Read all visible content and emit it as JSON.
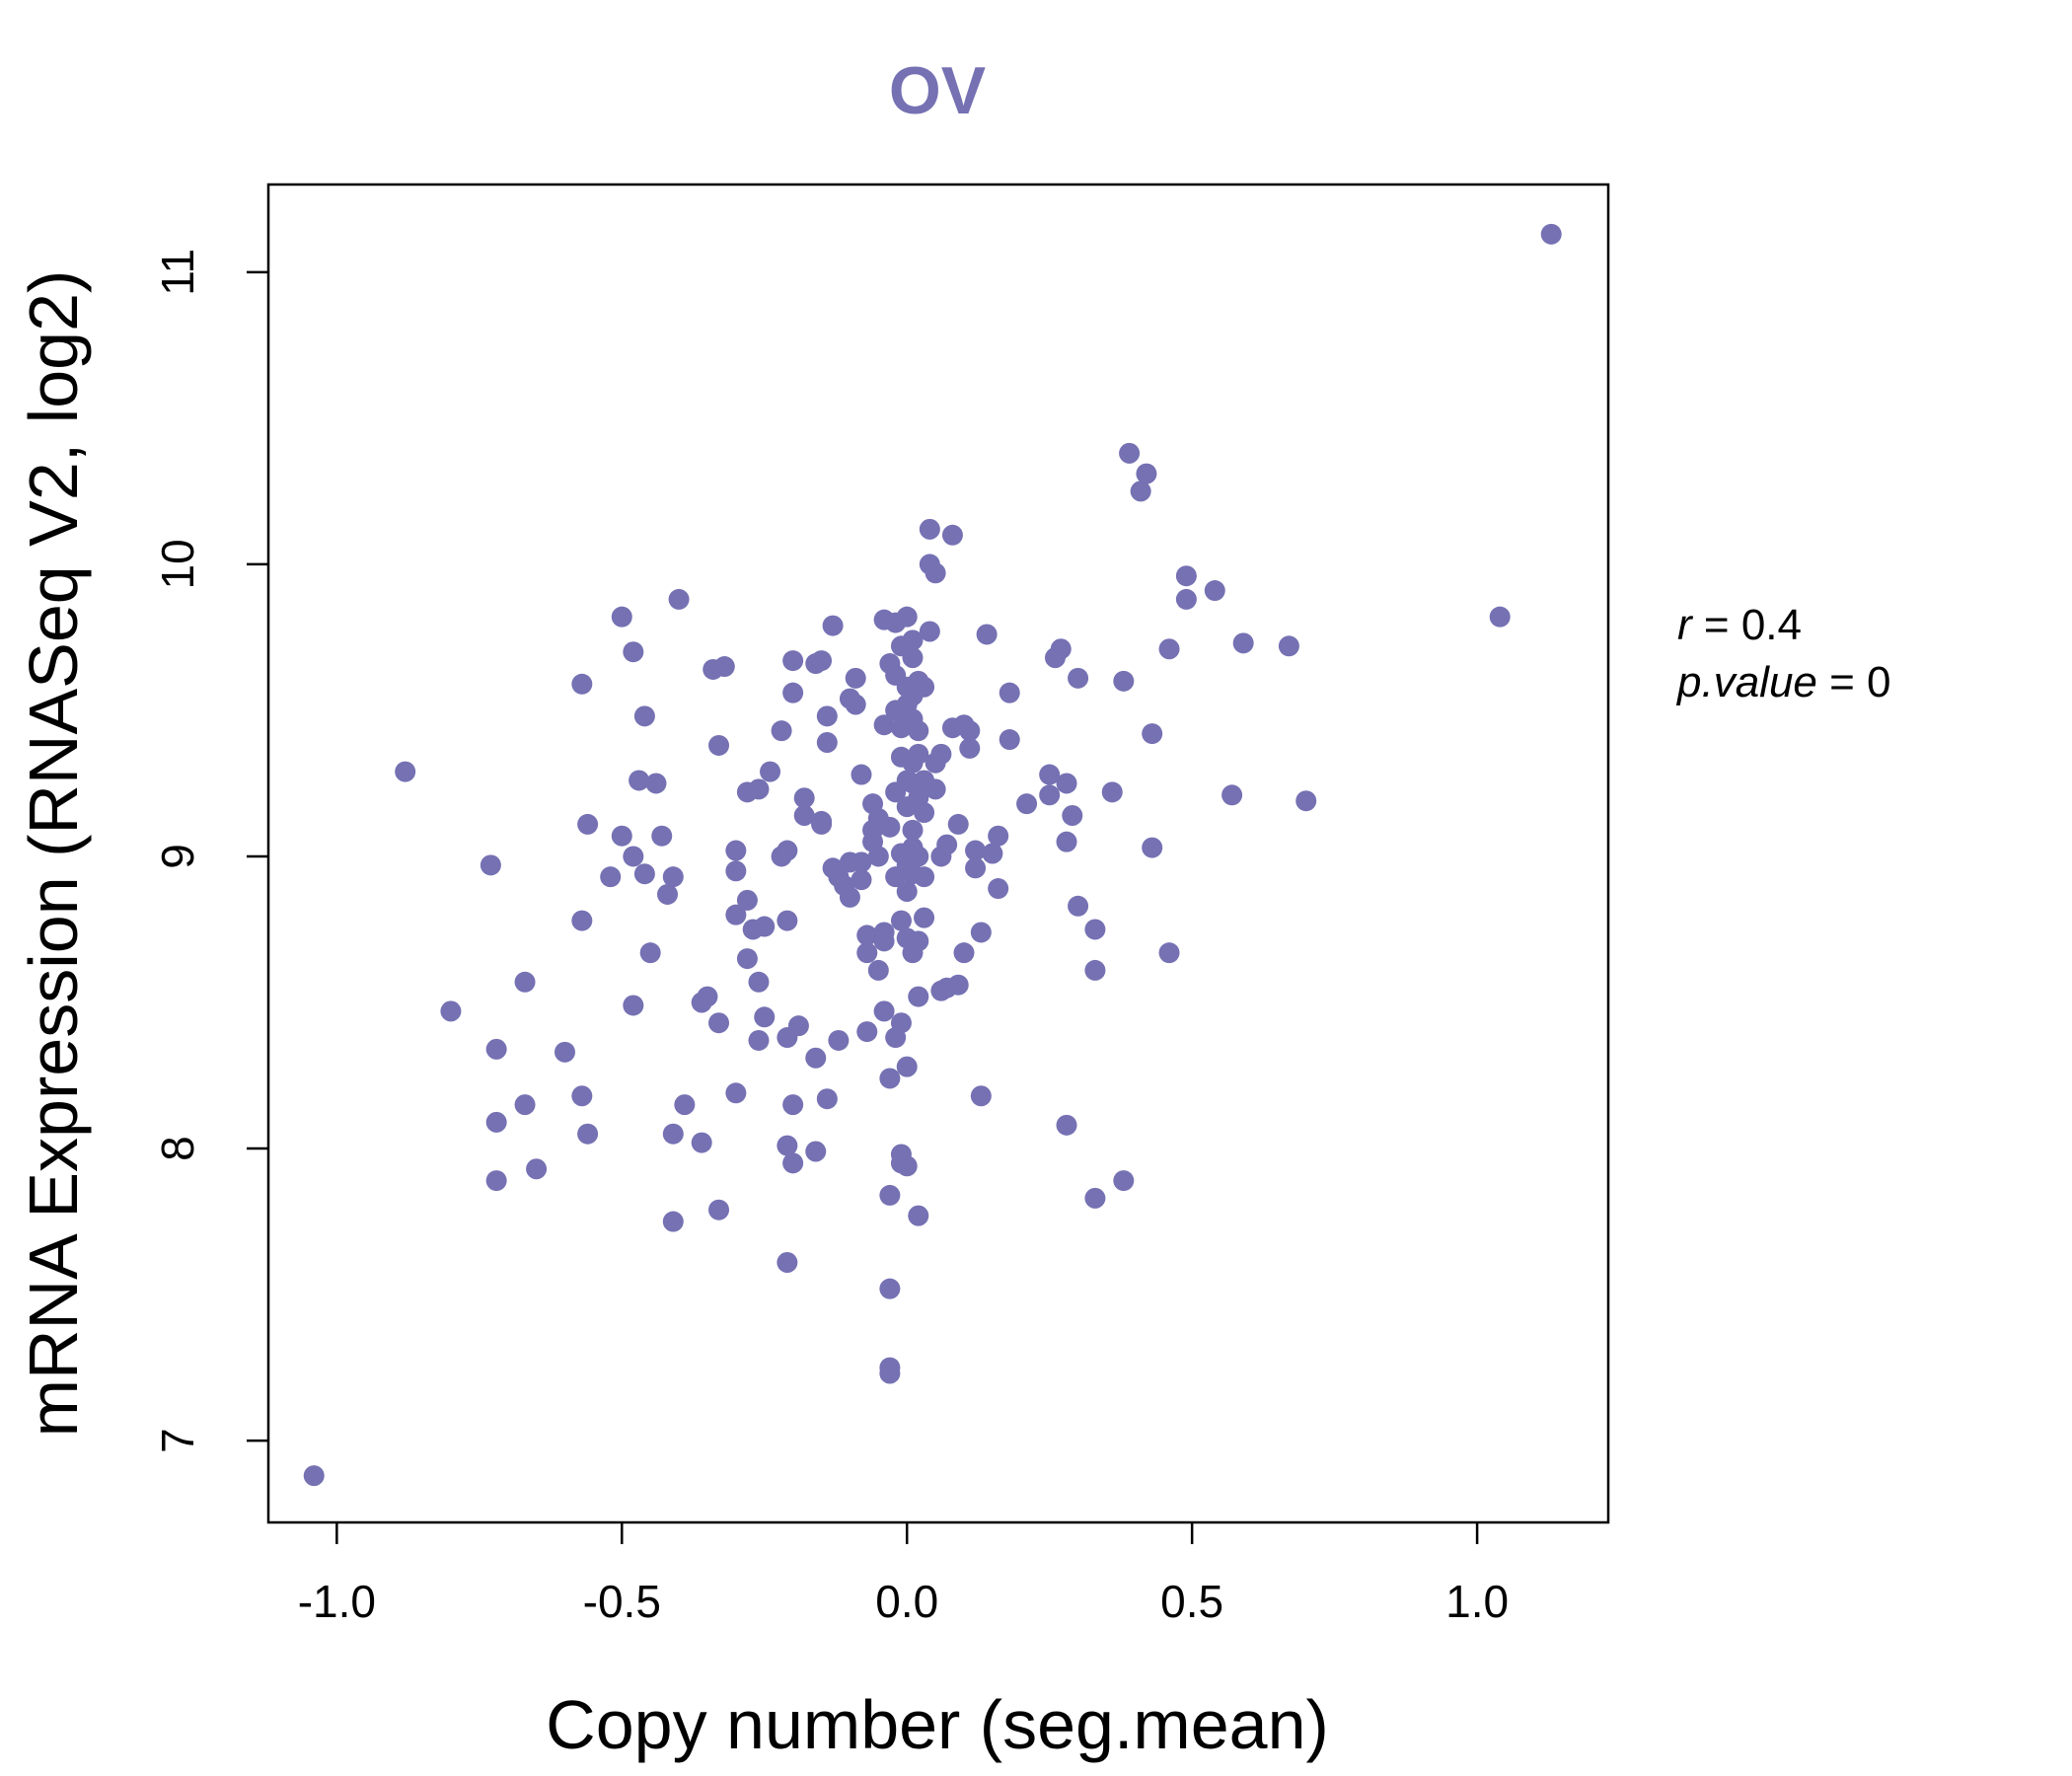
{
  "colors": {
    "accent": "#7571B3",
    "axis": "#000000",
    "background": "#FFFFFF"
  },
  "chart_data": {
    "type": "scatter",
    "title": "OV",
    "xlabel": "Copy number (seg.mean)",
    "ylabel": "mRNA Expression (RNASeq V2, log2)",
    "xlim": [
      -1.12,
      1.23
    ],
    "ylim": [
      6.72,
      11.3
    ],
    "x_ticks": [
      -1.0,
      -0.5,
      0.0,
      0.5,
      1.0
    ],
    "x_tick_labels": [
      "-1.0",
      "-0.5",
      "0.0",
      "0.5",
      "1.0"
    ],
    "y_ticks": [
      7,
      8,
      9,
      10,
      11
    ],
    "y_tick_labels": [
      "7",
      "8",
      "9",
      "10",
      "11"
    ],
    "annotation": {
      "r_label": "r",
      "r_value": "0.4",
      "p_label": "p.value",
      "p_value": "0"
    },
    "points": [
      [
        -1.04,
        6.88
      ],
      [
        -0.88,
        9.29
      ],
      [
        -0.8,
        8.47
      ],
      [
        -0.73,
        8.97
      ],
      [
        -0.72,
        8.34
      ],
      [
        -0.72,
        8.09
      ],
      [
        -0.72,
        7.89
      ],
      [
        -0.67,
        8.57
      ],
      [
        -0.67,
        8.15
      ],
      [
        -0.65,
        7.93
      ],
      [
        -0.6,
        8.33
      ],
      [
        -0.57,
        9.59
      ],
      [
        -0.57,
        8.78
      ],
      [
        -0.57,
        8.18
      ],
      [
        -0.56,
        9.11
      ],
      [
        -0.56,
        8.05
      ],
      [
        -0.52,
        8.93
      ],
      [
        -0.5,
        9.82
      ],
      [
        -0.5,
        9.07
      ],
      [
        -0.48,
        9.7
      ],
      [
        -0.48,
        8.49
      ],
      [
        -0.48,
        9.0
      ],
      [
        -0.47,
        9.26
      ],
      [
        -0.46,
        9.48
      ],
      [
        -0.46,
        8.94
      ],
      [
        -0.45,
        8.67
      ],
      [
        -0.44,
        9.25
      ],
      [
        -0.43,
        9.07
      ],
      [
        -0.42,
        8.87
      ],
      [
        -0.41,
        8.93
      ],
      [
        -0.41,
        8.05
      ],
      [
        -0.41,
        7.75
      ],
      [
        -0.4,
        9.88
      ],
      [
        -0.39,
        8.15
      ],
      [
        -0.36,
        8.5
      ],
      [
        -0.36,
        8.02
      ],
      [
        -0.35,
        8.52
      ],
      [
        -0.34,
        9.64
      ],
      [
        -0.33,
        9.38
      ],
      [
        -0.33,
        8.43
      ],
      [
        -0.33,
        7.79
      ],
      [
        -0.32,
        9.65
      ],
      [
        -0.3,
        9.02
      ],
      [
        -0.3,
        8.95
      ],
      [
        -0.3,
        8.8
      ],
      [
        -0.3,
        8.19
      ],
      [
        -0.28,
        9.22
      ],
      [
        -0.28,
        8.85
      ],
      [
        -0.28,
        8.65
      ],
      [
        -0.27,
        8.75
      ],
      [
        -0.26,
        9.23
      ],
      [
        -0.26,
        8.57
      ],
      [
        -0.26,
        8.37
      ],
      [
        -0.25,
        8.76
      ],
      [
        -0.25,
        8.45
      ],
      [
        -0.24,
        9.29
      ],
      [
        -0.22,
        9.43
      ],
      [
        -0.22,
        9.0
      ],
      [
        -0.21,
        9.02
      ],
      [
        -0.21,
        8.78
      ],
      [
        -0.21,
        8.38
      ],
      [
        -0.21,
        8.01
      ],
      [
        -0.21,
        7.61
      ],
      [
        -0.2,
        9.67
      ],
      [
        -0.2,
        9.56
      ],
      [
        -0.2,
        8.15
      ],
      [
        -0.2,
        7.95
      ],
      [
        -0.19,
        8.42
      ],
      [
        -0.18,
        9.2
      ],
      [
        -0.18,
        9.14
      ],
      [
        -0.16,
        9.66
      ],
      [
        -0.16,
        8.31
      ],
      [
        -0.16,
        7.99
      ],
      [
        -0.15,
        9.67
      ],
      [
        -0.15,
        9.12
      ],
      [
        -0.15,
        9.11
      ],
      [
        -0.14,
        9.48
      ],
      [
        -0.14,
        9.39
      ],
      [
        -0.14,
        8.17
      ],
      [
        -0.13,
        9.79
      ],
      [
        -0.13,
        8.96
      ],
      [
        -0.12,
        8.93
      ],
      [
        -0.12,
        8.37
      ],
      [
        -0.11,
        8.9
      ],
      [
        -0.1,
        9.54
      ],
      [
        -0.1,
        8.98
      ],
      [
        -0.1,
        8.86
      ],
      [
        -0.09,
        9.52
      ],
      [
        -0.09,
        9.61
      ],
      [
        -0.08,
        9.28
      ],
      [
        -0.08,
        8.98
      ],
      [
        -0.08,
        8.92
      ],
      [
        -0.07,
        8.73
      ],
      [
        -0.07,
        8.67
      ],
      [
        -0.07,
        8.4
      ],
      [
        -0.06,
        9.18
      ],
      [
        -0.06,
        9.09
      ],
      [
        -0.06,
        9.05
      ],
      [
        -0.05,
        9.13
      ],
      [
        -0.05,
        9.0
      ],
      [
        -0.05,
        8.61
      ],
      [
        -0.04,
        9.81
      ],
      [
        -0.04,
        9.45
      ],
      [
        -0.04,
        8.74
      ],
      [
        -0.04,
        8.71
      ],
      [
        -0.04,
        8.47
      ],
      [
        -0.03,
        9.66
      ],
      [
        -0.03,
        9.1
      ],
      [
        -0.03,
        8.24
      ],
      [
        -0.03,
        7.84
      ],
      [
        -0.03,
        7.52
      ],
      [
        -0.03,
        7.25
      ],
      [
        -0.03,
        7.23
      ],
      [
        -0.02,
        9.8
      ],
      [
        -0.02,
        9.62
      ],
      [
        -0.02,
        9.5
      ],
      [
        -0.02,
        9.22
      ],
      [
        -0.02,
        8.93
      ],
      [
        -0.02,
        8.38
      ],
      [
        -0.01,
        9.72
      ],
      [
        -0.01,
        9.44
      ],
      [
        -0.01,
        9.34
      ],
      [
        -0.01,
        9.01
      ],
      [
        -0.01,
        8.78
      ],
      [
        -0.01,
        8.43
      ],
      [
        -0.01,
        7.98
      ],
      [
        -0.01,
        7.95
      ],
      [
        0.0,
        9.82
      ],
      [
        0.0,
        9.58
      ],
      [
        0.0,
        9.52
      ],
      [
        0.0,
        9.26
      ],
      [
        0.0,
        9.17
      ],
      [
        0.0,
        8.97
      ],
      [
        0.0,
        8.88
      ],
      [
        0.0,
        8.72
      ],
      [
        0.0,
        8.28
      ],
      [
        0.0,
        7.94
      ],
      [
        0.01,
        9.74
      ],
      [
        0.01,
        9.68
      ],
      [
        0.01,
        9.55
      ],
      [
        0.01,
        9.47
      ],
      [
        0.01,
        9.32
      ],
      [
        0.01,
        9.25
      ],
      [
        0.01,
        9.09
      ],
      [
        0.01,
        9.03
      ],
      [
        0.01,
        8.94
      ],
      [
        0.01,
        8.67
      ],
      [
        0.02,
        9.6
      ],
      [
        0.02,
        9.43
      ],
      [
        0.02,
        9.35
      ],
      [
        0.02,
        9.2
      ],
      [
        0.02,
        9.0
      ],
      [
        0.02,
        8.71
      ],
      [
        0.02,
        8.52
      ],
      [
        0.02,
        7.77
      ],
      [
        0.03,
        9.58
      ],
      [
        0.03,
        9.26
      ],
      [
        0.03,
        9.15
      ],
      [
        0.03,
        8.93
      ],
      [
        0.03,
        8.79
      ],
      [
        0.04,
        10.12
      ],
      [
        0.04,
        10.0
      ],
      [
        0.04,
        9.77
      ],
      [
        0.05,
        9.97
      ],
      [
        0.05,
        9.32
      ],
      [
        0.05,
        9.23
      ],
      [
        0.06,
        9.35
      ],
      [
        0.06,
        9.0
      ],
      [
        0.06,
        8.54
      ],
      [
        0.07,
        9.04
      ],
      [
        0.07,
        8.55
      ],
      [
        0.08,
        9.44
      ],
      [
        0.08,
        10.1
      ],
      [
        0.09,
        9.11
      ],
      [
        0.09,
        8.56
      ],
      [
        0.1,
        9.45
      ],
      [
        0.1,
        8.67
      ],
      [
        0.11,
        9.37
      ],
      [
        0.11,
        9.43
      ],
      [
        0.12,
        9.02
      ],
      [
        0.12,
        8.96
      ],
      [
        0.13,
        8.74
      ],
      [
        0.13,
        8.18
      ],
      [
        0.14,
        9.76
      ],
      [
        0.15,
        9.01
      ],
      [
        0.16,
        9.07
      ],
      [
        0.16,
        8.89
      ],
      [
        0.18,
        9.56
      ],
      [
        0.18,
        9.4
      ],
      [
        0.21,
        9.18
      ],
      [
        0.25,
        9.28
      ],
      [
        0.25,
        9.21
      ],
      [
        0.26,
        9.68
      ],
      [
        0.27,
        9.71
      ],
      [
        0.28,
        9.25
      ],
      [
        0.28,
        9.05
      ],
      [
        0.28,
        8.08
      ],
      [
        0.29,
        9.14
      ],
      [
        0.3,
        9.61
      ],
      [
        0.3,
        8.83
      ],
      [
        0.33,
        8.75
      ],
      [
        0.33,
        8.61
      ],
      [
        0.33,
        7.83
      ],
      [
        0.36,
        9.22
      ],
      [
        0.38,
        9.6
      ],
      [
        0.38,
        7.89
      ],
      [
        0.39,
        10.38
      ],
      [
        0.41,
        10.25
      ],
      [
        0.42,
        10.31
      ],
      [
        0.43,
        9.42
      ],
      [
        0.43,
        9.03
      ],
      [
        0.46,
        9.71
      ],
      [
        0.46,
        8.67
      ],
      [
        0.49,
        9.96
      ],
      [
        0.49,
        9.88
      ],
      [
        0.54,
        9.91
      ],
      [
        0.57,
        9.21
      ],
      [
        0.59,
        9.73
      ],
      [
        0.67,
        9.72
      ],
      [
        0.7,
        9.19
      ],
      [
        1.04,
        9.82
      ],
      [
        1.13,
        11.13
      ]
    ]
  }
}
